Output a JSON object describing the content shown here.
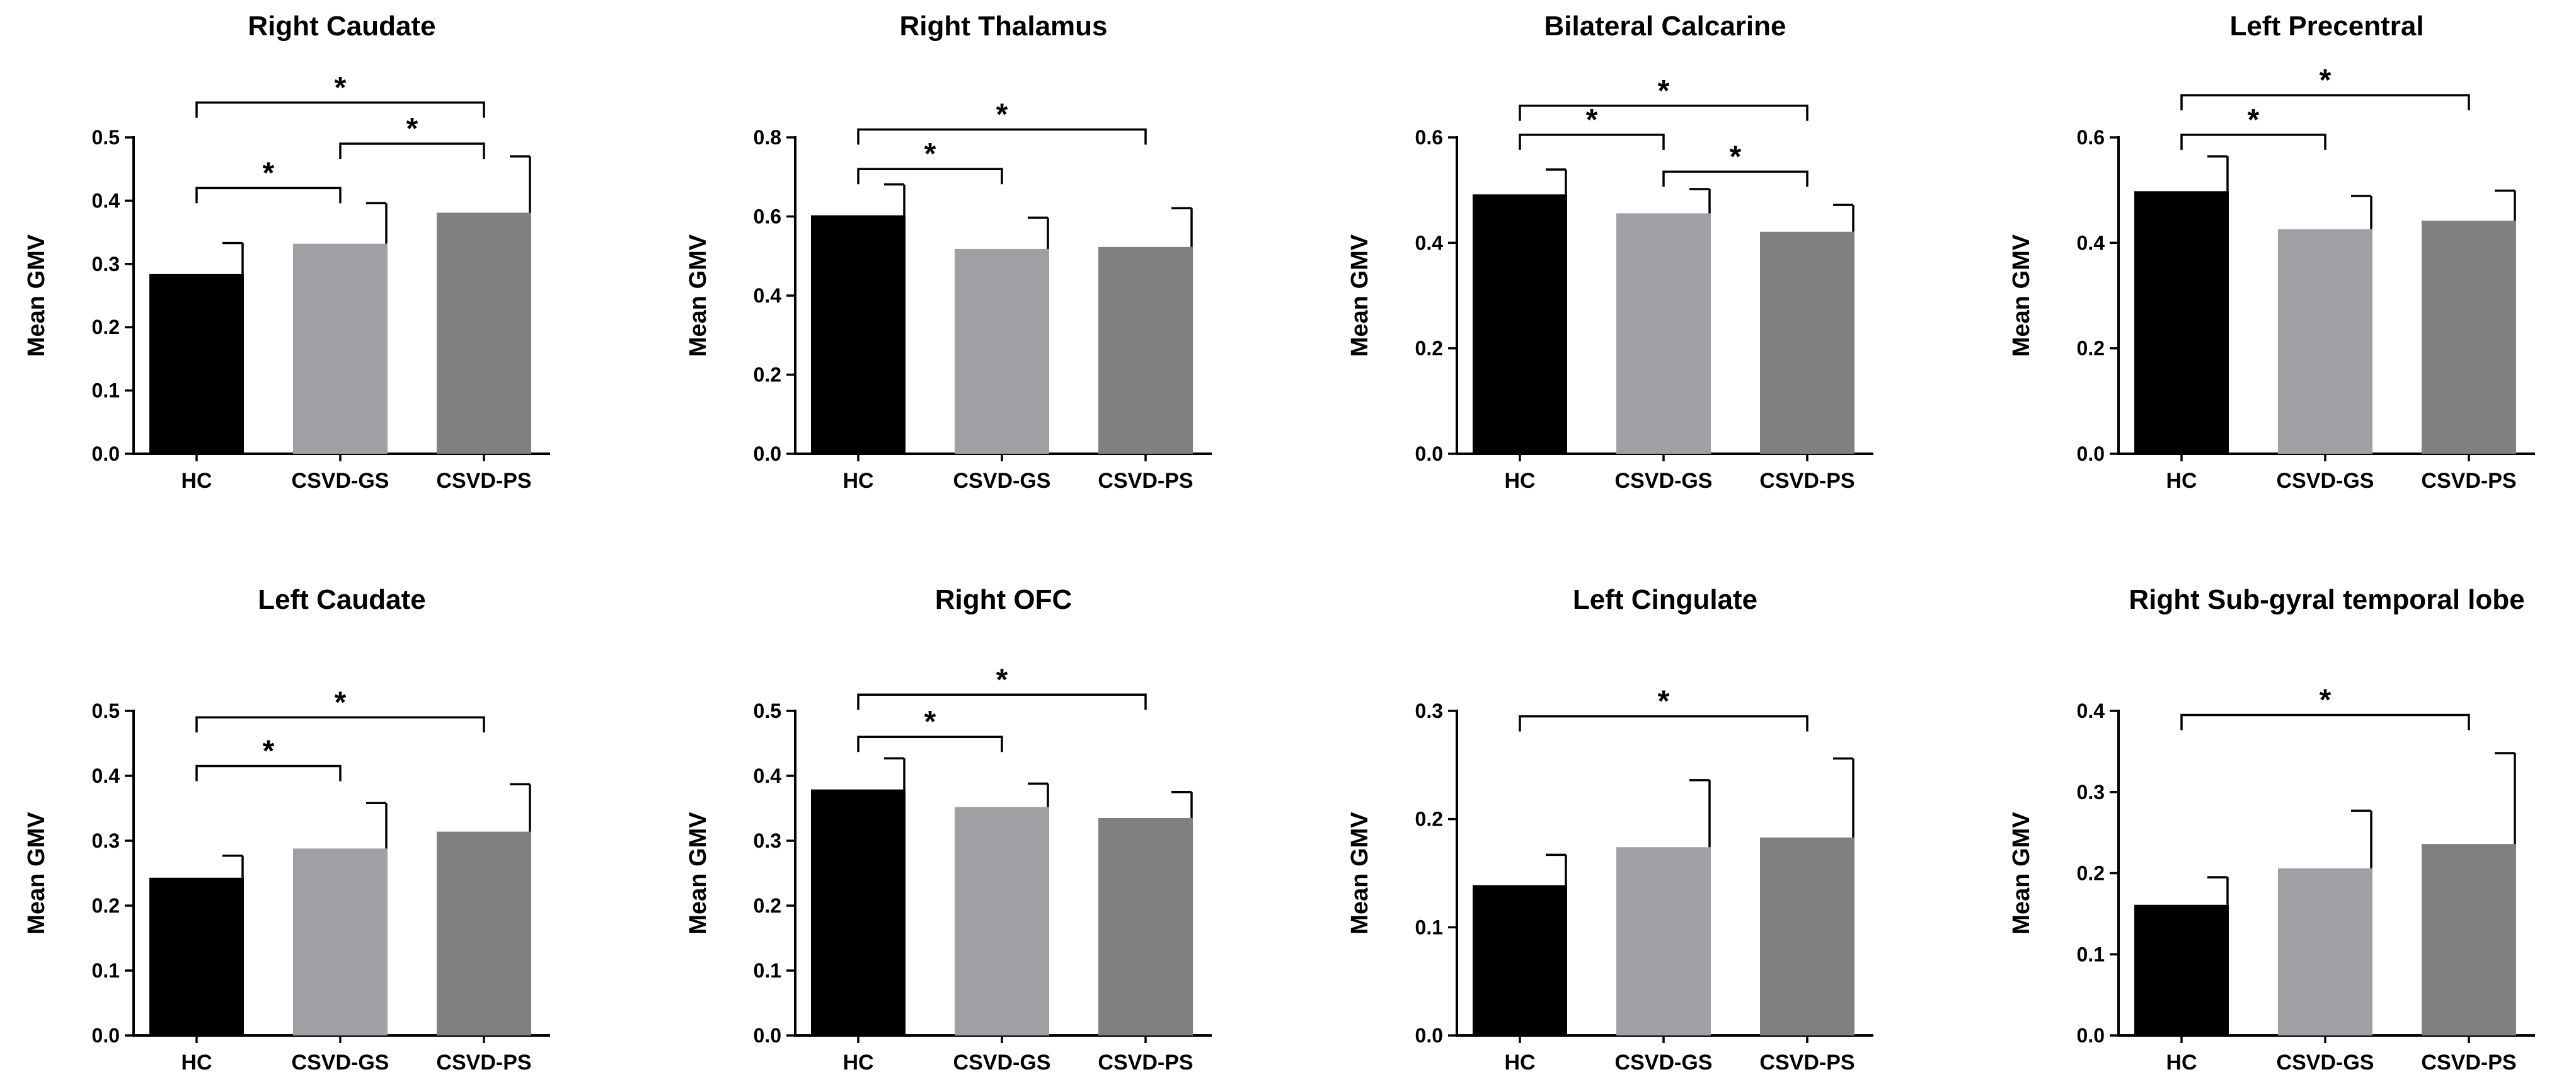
{
  "figure": {
    "background": "#ffffff"
  },
  "colors": {
    "HC": "#000000",
    "CSVD-GS": "#a0a0a4",
    "CSVD-PS": "#808080"
  },
  "chart_data": [
    {
      "type": "bar",
      "title": "Right Caudate",
      "ylabel": "Mean GMV",
      "categories": [
        "HC",
        "CSVD-GS",
        "CSVD-PS"
      ],
      "values": [
        0.284,
        0.332,
        0.381
      ],
      "errors": [
        0.049,
        0.064,
        0.089
      ],
      "ylim": [
        0,
        0.5
      ],
      "yticks": [
        "0.0",
        "0.1",
        "0.2",
        "0.3",
        "0.4",
        "0.5"
      ],
      "significance": [
        {
          "from": "HC",
          "to": "CSVD-GS",
          "level": 0.42,
          "label": "*"
        },
        {
          "from": "CSVD-GS",
          "to": "CSVD-PS",
          "level": 0.49,
          "label": "*"
        },
        {
          "from": "HC",
          "to": "CSVD-PS",
          "level": 0.555,
          "label": "*"
        }
      ]
    },
    {
      "type": "bar",
      "title": "Right Thalamus",
      "ylabel": "Mean GMV",
      "categories": [
        "HC",
        "CSVD-GS",
        "CSVD-PS"
      ],
      "values": [
        0.603,
        0.518,
        0.523
      ],
      "errors": [
        0.078,
        0.079,
        0.098
      ],
      "ylim": [
        0,
        0.8
      ],
      "yticks": [
        "0.0",
        "0.2",
        "0.4",
        "0.6",
        "0.8"
      ],
      "significance": [
        {
          "from": "HC",
          "to": "CSVD-GS",
          "level": 0.72,
          "label": "*"
        },
        {
          "from": "HC",
          "to": "CSVD-PS",
          "level": 0.82,
          "label": "*"
        }
      ]
    },
    {
      "type": "bar",
      "title": "Bilateral Calcarine",
      "ylabel": "Mean GMV",
      "categories": [
        "HC",
        "CSVD-GS",
        "CSVD-PS"
      ],
      "values": [
        0.492,
        0.456,
        0.421
      ],
      "errors": [
        0.047,
        0.046,
        0.051
      ],
      "ylim": [
        0,
        0.6
      ],
      "yticks": [
        "0.0",
        "0.2",
        "0.4",
        "0.6"
      ],
      "significance": [
        {
          "from": "HC",
          "to": "CSVD-GS",
          "level": 0.605,
          "label": "*"
        },
        {
          "from": "CSVD-GS",
          "to": "CSVD-PS",
          "level": 0.535,
          "label": "*"
        },
        {
          "from": "HC",
          "to": "CSVD-PS",
          "level": 0.66,
          "label": "*"
        }
      ]
    },
    {
      "type": "bar",
      "title": "Left Precentral",
      "ylabel": "Mean GMV",
      "categories": [
        "HC",
        "CSVD-GS",
        "CSVD-PS"
      ],
      "values": [
        0.498,
        0.426,
        0.442
      ],
      "errors": [
        0.066,
        0.063,
        0.057
      ],
      "ylim": [
        0,
        0.6
      ],
      "yticks": [
        "0.0",
        "0.2",
        "0.4",
        "0.6"
      ],
      "significance": [
        {
          "from": "HC",
          "to": "CSVD-GS",
          "level": 0.605,
          "label": "*"
        },
        {
          "from": "HC",
          "to": "CSVD-PS",
          "level": 0.68,
          "label": "*"
        }
      ]
    },
    {
      "type": "bar",
      "title": "Left Caudate",
      "ylabel": "Mean GMV",
      "categories": [
        "HC",
        "CSVD-GS",
        "CSVD-PS"
      ],
      "values": [
        0.243,
        0.288,
        0.314
      ],
      "errors": [
        0.034,
        0.07,
        0.073
      ],
      "ylim": [
        0,
        0.5
      ],
      "yticks": [
        "0.0",
        "0.1",
        "0.2",
        "0.3",
        "0.4",
        "0.5"
      ],
      "significance": [
        {
          "from": "HC",
          "to": "CSVD-GS",
          "level": 0.415,
          "label": "*"
        },
        {
          "from": "HC",
          "to": "CSVD-PS",
          "level": 0.49,
          "label": "*"
        }
      ]
    },
    {
      "type": "bar",
      "title": "Right OFC",
      "ylabel": "Mean GMV",
      "categories": [
        "HC",
        "CSVD-GS",
        "CSVD-PS"
      ],
      "values": [
        0.379,
        0.352,
        0.335
      ],
      "errors": [
        0.048,
        0.036,
        0.04
      ],
      "ylim": [
        0,
        0.5
      ],
      "yticks": [
        "0.0",
        "0.1",
        "0.2",
        "0.3",
        "0.4",
        "0.5"
      ],
      "significance": [
        {
          "from": "HC",
          "to": "CSVD-GS",
          "level": 0.46,
          "label": "*"
        },
        {
          "from": "HC",
          "to": "CSVD-PS",
          "level": 0.525,
          "label": "*"
        }
      ]
    },
    {
      "type": "bar",
      "title": "Left Cingulate",
      "ylabel": "Mean GMV",
      "categories": [
        "HC",
        "CSVD-GS",
        "CSVD-PS"
      ],
      "values": [
        0.139,
        0.174,
        0.183
      ],
      "errors": [
        0.028,
        0.062,
        0.073
      ],
      "ylim": [
        0,
        0.3
      ],
      "yticks": [
        "0.0",
        "0.1",
        "0.2",
        "0.3"
      ],
      "significance": [
        {
          "from": "HC",
          "to": "CSVD-PS",
          "level": 0.295,
          "label": "*"
        }
      ]
    },
    {
      "type": "bar",
      "title": "Right Sub-gyral temporal lobe",
      "ylabel": "Mean GMV",
      "categories": [
        "HC",
        "CSVD-GS",
        "CSVD-PS"
      ],
      "values": [
        0.161,
        0.206,
        0.236
      ],
      "errors": [
        0.034,
        0.071,
        0.112
      ],
      "ylim": [
        0,
        0.4
      ],
      "yticks": [
        "0.0",
        "0.1",
        "0.2",
        "0.3",
        "0.4"
      ],
      "significance": [
        {
          "from": "HC",
          "to": "CSVD-PS",
          "level": 0.395,
          "label": "*"
        }
      ]
    }
  ]
}
